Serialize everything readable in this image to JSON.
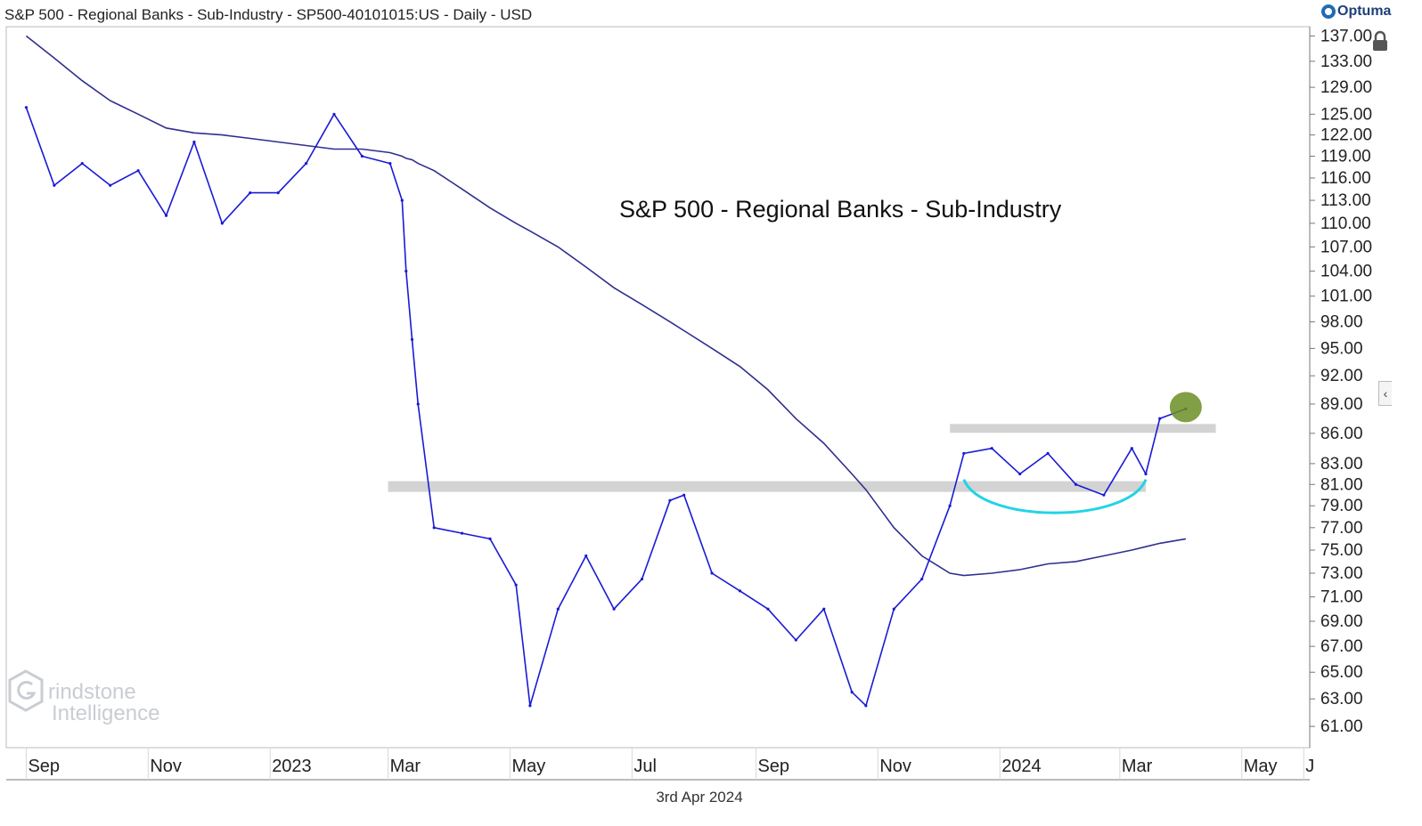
{
  "header": {
    "title": "S&P 500 - Regional Banks - Sub-Industry - SP500-40101015:US - Daily - USD",
    "logo_text": "Optuma"
  },
  "footer": {
    "date": "3rd Apr 2024"
  },
  "watermark": {
    "line1": "rindstone",
    "line2": "Intelligence"
  },
  "colors": {
    "price": "#1a1ad6",
    "moving_average": "#2f2f8f",
    "resistance_band": "#d3d3d3",
    "arc": "#22d3e6",
    "highlight": "#6b8e23",
    "axis": "#777777",
    "text": "#222222"
  },
  "icons": {
    "lock": "lock-icon",
    "collapse": "chevron-left-icon",
    "logo": "optuma-logo-icon"
  },
  "chart_data": {
    "type": "line",
    "title": "S&P 500 - Regional Banks - Sub-Industry",
    "y_scale": "log",
    "ylim": [
      59.5,
      138.5
    ],
    "yticks": [
      "137.00",
      "133.00",
      "129.00",
      "125.00",
      "122.00",
      "119.00",
      "116.00",
      "113.00",
      "110.00",
      "107.00",
      "104.00",
      "101.00",
      "98.00",
      "95.00",
      "92.00",
      "89.00",
      "86.00",
      "83.00",
      "81.00",
      "79.00",
      "77.00",
      "75.00",
      "73.00",
      "71.00",
      "69.00",
      "67.00",
      "65.00",
      "63.00",
      "61.00"
    ],
    "xtick_labels": [
      "Sep",
      "Nov",
      "2023",
      "Mar",
      "May",
      "Jul",
      "Sep",
      "Nov",
      "2024",
      "Mar",
      "May",
      "J"
    ],
    "x_dates": [
      "2022-09-01",
      "2022-09-15",
      "2022-09-29",
      "2022-10-13",
      "2022-10-27",
      "2022-11-10",
      "2022-11-24",
      "2022-12-08",
      "2022-12-22",
      "2023-01-05",
      "2023-01-19",
      "2023-02-02",
      "2023-02-16",
      "2023-03-02",
      "2023-03-08",
      "2023-03-10",
      "2023-03-13",
      "2023-03-16",
      "2023-03-24",
      "2023-04-07",
      "2023-04-21",
      "2023-05-04",
      "2023-05-11",
      "2023-05-25",
      "2023-06-08",
      "2023-06-22",
      "2023-07-06",
      "2023-07-20",
      "2023-07-27",
      "2023-08-10",
      "2023-08-24",
      "2023-09-07",
      "2023-09-21",
      "2023-10-05",
      "2023-10-19",
      "2023-10-26",
      "2023-11-09",
      "2023-11-23",
      "2023-12-07",
      "2023-12-14",
      "2023-12-28",
      "2024-01-11",
      "2024-01-25",
      "2024-02-08",
      "2024-02-22",
      "2024-03-07",
      "2024-03-14",
      "2024-03-21",
      "2024-04-03"
    ],
    "series": [
      {
        "values": [
          126.0,
          115.0,
          118.0,
          115.0,
          117.0,
          111.0,
          121.0,
          110.0,
          114.0,
          114.0,
          118.0,
          125.0,
          119.0,
          118.0,
          113.0,
          104.0,
          96.0,
          89.0,
          77.0,
          76.5,
          76.0,
          72.0,
          62.5,
          70.0,
          74.5,
          70.0,
          72.5,
          79.5,
          80.0,
          73.0,
          71.5,
          70.0,
          67.5,
          70.0,
          63.5,
          62.5,
          70.0,
          72.5,
          79.0,
          84.0,
          84.5,
          82.0,
          84.0,
          81.0,
          80.0,
          84.5,
          82.0,
          87.5,
          88.5
        ]
      },
      {
        "values": [
          137.0,
          133.5,
          130.0,
          127.0,
          125.0,
          123.0,
          122.3,
          122.0,
          121.5,
          121.0,
          120.5,
          120.0,
          120.0,
          119.5,
          119.0,
          118.7,
          118.5,
          118.0,
          117.0,
          114.5,
          112.0,
          110.0,
          109.0,
          107.0,
          104.5,
          102.0,
          100.0,
          98.0,
          97.0,
          95.0,
          93.0,
          90.5,
          87.5,
          85.0,
          82.0,
          80.5,
          77.0,
          74.5,
          73.0,
          72.8,
          73.0,
          73.3,
          73.8,
          74.0,
          74.5,
          75.0,
          75.3,
          75.6,
          76.0
        ]
      }
    ],
    "annotations": {
      "resistance_upper": 86.5,
      "resistance_lower": 80.8,
      "upper_band_range": [
        "2023-12-07",
        "2024-04-18"
      ],
      "lower_band_range": [
        "2023-03-01",
        "2024-03-14"
      ],
      "rounding_bottom": [
        "2023-12-14",
        "2024-03-14"
      ],
      "highlight_date": "2024-04-03",
      "highlight_value": 88.5
    }
  }
}
